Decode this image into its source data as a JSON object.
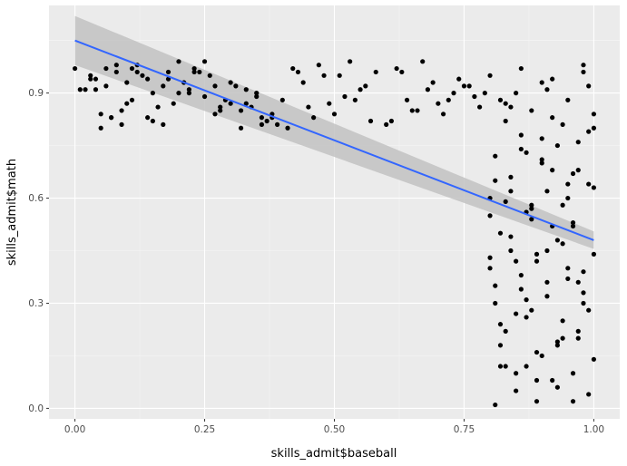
{
  "chart_data": {
    "type": "scatter",
    "title": "",
    "xlabel": "skills_admit$baseball",
    "ylabel": "skills_admit$math",
    "xlim": [
      -0.05,
      1.05
    ],
    "ylim": [
      -0.03,
      1.15
    ],
    "x_ticks": [
      0.0,
      0.25,
      0.5,
      0.75,
      1.0
    ],
    "x_tick_labels": [
      "0.00",
      "0.25",
      "0.50",
      "0.75",
      "1.00"
    ],
    "y_ticks": [
      0.0,
      0.3,
      0.6,
      0.9
    ],
    "y_tick_labels": [
      "0.0",
      "0.3",
      "0.6",
      "0.9"
    ],
    "grid": true,
    "smooth": {
      "method": "linear",
      "x": [
        0.0,
        1.0
      ],
      "y": [
        1.05,
        0.48
      ],
      "band_lower": [
        0.98,
        0.455
      ],
      "band_upper": [
        1.12,
        0.505
      ]
    },
    "colors": {
      "panel": "#ebebeb",
      "grid_major": "#ffffff",
      "points": "#000000",
      "line": "#3366ff",
      "band": "#c2c2c2"
    },
    "points": {
      "x": [
        0.0,
        0.01,
        0.02,
        0.03,
        0.04,
        0.05,
        0.06,
        0.07,
        0.08,
        0.09,
        0.1,
        0.11,
        0.12,
        0.13,
        0.14,
        0.15,
        0.16,
        0.17,
        0.18,
        0.19,
        0.2,
        0.21,
        0.22,
        0.23,
        0.24,
        0.25,
        0.26,
        0.27,
        0.28,
        0.29,
        0.3,
        0.31,
        0.32,
        0.33,
        0.34,
        0.35,
        0.36,
        0.37,
        0.38,
        0.39,
        0.4,
        0.04,
        0.05,
        0.07,
        0.08,
        0.1,
        0.12,
        0.15,
        0.18,
        0.22,
        0.25,
        0.28,
        0.32,
        0.35,
        0.38,
        0.41,
        0.03,
        0.06,
        0.09,
        0.11,
        0.14,
        0.17,
        0.2,
        0.23,
        0.27,
        0.3,
        0.33,
        0.36,
        0.42,
        0.45,
        0.48,
        0.5,
        0.52,
        0.55,
        0.58,
        0.61,
        0.64,
        0.67,
        0.7,
        0.73,
        0.76,
        0.78,
        0.44,
        0.47,
        0.51,
        0.54,
        0.57,
        0.62,
        0.65,
        0.68,
        0.71,
        0.74,
        0.77,
        0.79,
        0.43,
        0.46,
        0.49,
        0.53,
        0.56,
        0.6,
        0.63,
        0.66,
        0.69,
        0.72,
        0.75,
        0.8,
        0.8,
        0.81,
        0.81,
        0.82,
        0.82,
        0.83,
        0.83,
        0.84,
        0.84,
        0.85,
        0.85,
        0.86,
        0.86,
        0.87,
        0.87,
        0.88,
        0.88,
        0.89,
        0.89,
        0.9,
        0.9,
        0.91,
        0.91,
        0.92,
        0.92,
        0.93,
        0.93,
        0.94,
        0.94,
        0.95,
        0.95,
        0.96,
        0.96,
        0.97,
        0.97,
        0.98,
        0.98,
        0.99,
        0.99,
        1.0,
        1.0,
        0.8,
        0.81,
        0.82,
        0.83,
        0.84,
        0.85,
        0.86,
        0.87,
        0.88,
        0.89,
        0.9,
        0.91,
        0.92,
        0.93,
        0.94,
        0.95,
        0.96,
        0.97,
        0.98,
        0.99,
        1.0,
        0.8,
        0.81,
        0.82,
        0.83,
        0.84,
        0.85,
        0.86,
        0.87,
        0.88,
        0.89,
        0.9,
        0.91,
        0.92,
        0.93,
        0.94,
        0.95,
        0.96,
        0.97,
        0.98,
        0.99,
        1.0,
        0.8,
        0.82,
        0.84,
        0.86,
        0.88,
        0.9,
        0.92,
        0.94,
        0.96,
        0.98,
        1.0,
        0.81,
        0.83,
        0.85,
        0.87,
        0.89,
        0.91,
        0.93,
        0.95,
        0.97,
        0.99
      ],
      "y": [
        0.97,
        0.91,
        0.91,
        0.95,
        0.94,
        0.8,
        0.97,
        0.83,
        0.98,
        0.81,
        0.93,
        0.97,
        0.96,
        0.95,
        0.94,
        0.9,
        0.86,
        0.92,
        0.96,
        0.87,
        0.99,
        0.93,
        0.9,
        0.97,
        0.96,
        0.99,
        0.95,
        0.92,
        0.85,
        0.88,
        0.87,
        0.92,
        0.8,
        0.91,
        0.86,
        0.89,
        0.83,
        0.82,
        0.84,
        0.81,
        0.88,
        0.91,
        0.84,
        0.83,
        0.96,
        0.87,
        0.98,
        0.82,
        0.94,
        0.91,
        0.89,
        0.86,
        0.85,
        0.9,
        0.83,
        0.8,
        0.94,
        0.92,
        0.85,
        0.88,
        0.83,
        0.81,
        0.9,
        0.96,
        0.84,
        0.93,
        0.87,
        0.81,
        0.97,
        0.86,
        0.95,
        0.84,
        0.89,
        0.91,
        0.96,
        0.82,
        0.88,
        0.99,
        0.87,
        0.9,
        0.92,
        0.86,
        0.93,
        0.98,
        0.95,
        0.88,
        0.82,
        0.97,
        0.85,
        0.91,
        0.84,
        0.94,
        0.89,
        0.9,
        0.96,
        0.83,
        0.87,
        0.99,
        0.92,
        0.81,
        0.96,
        0.85,
        0.93,
        0.88,
        0.92,
        0.6,
        0.95,
        0.35,
        0.72,
        0.18,
        0.5,
        0.82,
        0.22,
        0.45,
        0.66,
        0.05,
        0.9,
        0.38,
        0.78,
        0.12,
        0.56,
        0.28,
        0.85,
        0.02,
        0.42,
        0.7,
        0.15,
        0.62,
        0.32,
        0.94,
        0.08,
        0.48,
        0.75,
        0.25,
        0.58,
        0.4,
        0.88,
        0.1,
        0.52,
        0.68,
        0.2,
        0.96,
        0.3,
        0.64,
        0.04,
        0.44,
        0.8,
        0.55,
        0.3,
        0.88,
        0.12,
        0.62,
        0.42,
        0.97,
        0.26,
        0.54,
        0.08,
        0.71,
        0.36,
        0.83,
        0.19,
        0.47,
        0.6,
        0.02,
        0.76,
        0.33,
        0.92,
        0.14,
        0.4,
        0.65,
        0.24,
        0.87,
        0.49,
        0.1,
        0.74,
        0.31,
        0.57,
        0.16,
        0.93,
        0.45,
        0.68,
        0.06,
        0.81,
        0.37,
        0.53,
        0.22,
        0.98,
        0.28,
        0.63,
        0.43,
        0.12,
        0.86,
        0.34,
        0.58,
        0.77,
        0.52,
        0.2,
        0.67,
        0.39,
        0.84,
        0.01,
        0.59,
        0.27,
        0.73,
        0.44,
        0.91,
        0.18,
        0.64,
        0.36,
        0.79
      ]
    }
  }
}
